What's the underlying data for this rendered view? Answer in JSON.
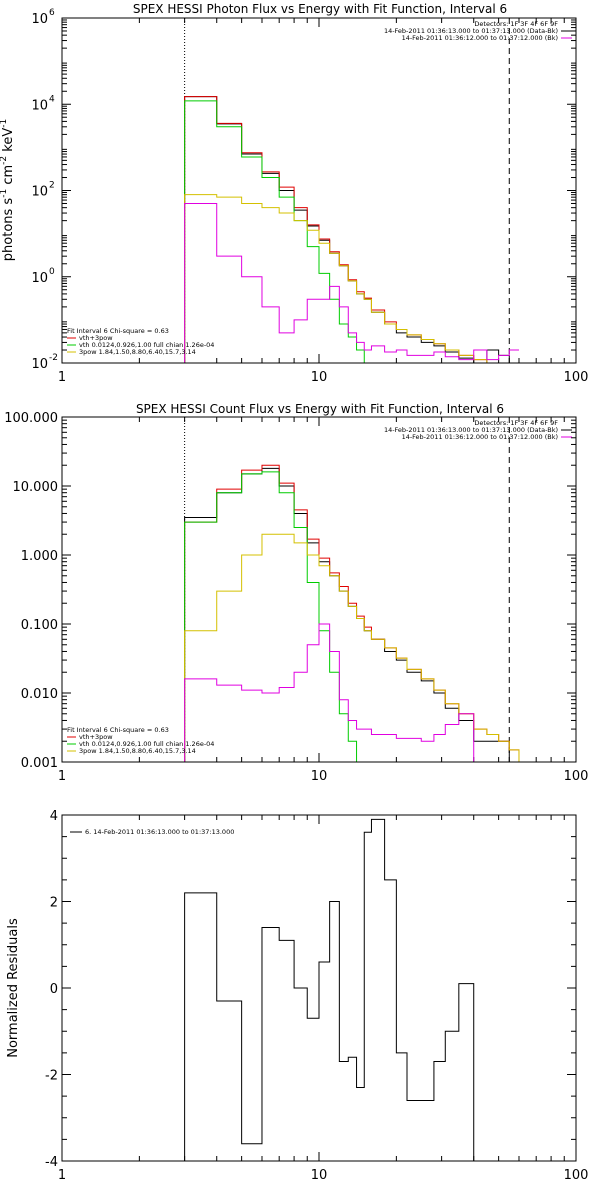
{
  "chart_data": [
    {
      "type": "line",
      "title": "SPEX HESSI Photon Flux vs Energy with Fit Function, Interval 6",
      "ylabel_parts": [
        "photons s",
        "-1",
        " cm",
        "-2",
        " keV",
        "-1"
      ],
      "xlabel": "",
      "xscale": "log",
      "yscale": "log",
      "xlim": [
        1,
        100
      ],
      "ylim": [
        0.01,
        1000000
      ],
      "x_ticks": [
        1,
        10,
        100
      ],
      "x_tick_labels": [
        "1",
        "10",
        "100"
      ],
      "y_ticks": [
        0.01,
        1,
        100,
        10000,
        1000000
      ],
      "y_tick_labels": [
        {
          "base": "10",
          "exp": "-2"
        },
        {
          "base": "10",
          "exp": "0"
        },
        {
          "base": "10",
          "exp": "2"
        },
        {
          "base": "10",
          "exp": "4"
        },
        {
          "base": "10",
          "exp": "6"
        }
      ],
      "vlines": [
        {
          "x": 3.0,
          "style": "dotted"
        },
        {
          "x": 55.0,
          "style": "dashed"
        }
      ],
      "legend_top": [
        {
          "text": "Detectors: 1F 3F 4F 6F 9F",
          "color": ""
        },
        {
          "text": "14-Feb-2011 01:36:13.000 to 01:37:13.000 (Data-Bk)",
          "color": "#000000"
        },
        {
          "text": "14-Feb-2011 01:36:12.000 to 01:37:12.000 (Bk)",
          "color": "#e000e0"
        }
      ],
      "legend_bottom": [
        {
          "text": "Fit Interval  6    Chi-square = 0.63",
          "color": ""
        },
        {
          "text": "vth+3pow",
          "color": "#e00000"
        },
        {
          "text": "vth 0.0124,0.926,1.00  full chian 1.26e-04",
          "color": "#00cc00"
        },
        {
          "text": "3pow 1.84,1.50,8.80,6.40,15.7,3.14",
          "color": "#d4c000"
        }
      ],
      "bin_edges": [
        3.0,
        4.0,
        5.0,
        6.0,
        7.0,
        8.0,
        9.0,
        10.0,
        11.0,
        12.0,
        13.0,
        14.0,
        15.0,
        16.0,
        18.0,
        20.0,
        22.0,
        25.0,
        28.0,
        31.0,
        35.0,
        40.0,
        45.0,
        50.0,
        55.0,
        60.0
      ],
      "series": [
        {
          "name": "Data-Bk",
          "color": "#000000",
          "values": [
            15000,
            3500,
            700,
            250,
            100,
            35,
            15,
            7,
            3.5,
            1.8,
            0.8,
            0.4,
            0.3,
            0.15,
            0.08,
            0.05,
            0.04,
            0.03,
            0.025,
            0.018,
            0.013,
            0.01,
            0.02,
            0.015,
            0.01
          ]
        },
        {
          "name": "vth+3pow",
          "color": "#e00000",
          "values": [
            15000,
            3600,
            750,
            270,
            120,
            40,
            16,
            7.5,
            3.8,
            1.9,
            0.85,
            0.45,
            0.32,
            0.17,
            0.09,
            0.06,
            0.045,
            0.035,
            0.028,
            0.02,
            0.015,
            0.012,
            0.009,
            0.007,
            0.005
          ]
        },
        {
          "name": "vth",
          "color": "#00cc00",
          "values": [
            12000,
            3000,
            600,
            200,
            70,
            20,
            5,
            1.2,
            0.3,
            0.08,
            0.04,
            0.02,
            0.01,
            0.01,
            0.01,
            0.01,
            0.01,
            0.01,
            0.01,
            0.01,
            0.01,
            0.01,
            0.01,
            0.01,
            0.01
          ]
        },
        {
          "name": "3pow",
          "color": "#d4c000",
          "values": [
            80,
            70,
            50,
            40,
            30,
            20,
            12,
            6,
            3.5,
            1.8,
            0.8,
            0.4,
            0.3,
            0.15,
            0.08,
            0.06,
            0.045,
            0.035,
            0.028,
            0.02,
            0.015,
            0.012,
            0.009,
            0.007,
            0.005
          ]
        },
        {
          "name": "Bk",
          "color": "#e000e0",
          "values": [
            50,
            3,
            1,
            0.2,
            0.05,
            0.1,
            0.3,
            0.3,
            0.6,
            0.2,
            0.05,
            0.03,
            0.02,
            0.025,
            0.018,
            0.02,
            0.015,
            0.015,
            0.018,
            0.014,
            0.012,
            0.02,
            0.012,
            0.015,
            0.02
          ]
        }
      ]
    },
    {
      "type": "line",
      "title": "SPEX HESSI Count Flux vs Energy with Fit Function, Interval 6",
      "xscale": "log",
      "yscale": "log",
      "xlim": [
        1,
        100
      ],
      "ylim": [
        0.001,
        100
      ],
      "x_ticks": [
        1,
        10,
        100
      ],
      "x_tick_labels": [
        "1",
        "10",
        "100"
      ],
      "y_ticks": [
        0.001,
        0.01,
        0.1,
        1,
        10,
        100
      ],
      "y_tick_labels": [
        "0.001",
        "0.010",
        "0.100",
        "1.000",
        "10.000",
        "100.000"
      ],
      "vlines": [
        {
          "x": 3.0,
          "style": "dotted"
        },
        {
          "x": 55.0,
          "style": "dashed"
        }
      ],
      "legend_top": [
        {
          "text": "Detectors: 1F 3F 4F 6F 9F",
          "color": ""
        },
        {
          "text": "14-Feb-2011 01:36:13.000 to 01:37:13.000 (Data-Bk)",
          "color": "#000000"
        },
        {
          "text": "14-Feb-2011 01:36:12.000 to 01:37:12.000 (Bk)",
          "color": "#e000e0"
        }
      ],
      "legend_bottom": [
        {
          "text": "Fit Interval  6    Chi-square = 0.63",
          "color": ""
        },
        {
          "text": "vth+3pow",
          "color": "#e00000"
        },
        {
          "text": "vth 0.0124,0.926,1.00  full chian 1.26e-04",
          "color": "#00cc00"
        },
        {
          "text": "3pow 1.84,1.50,8.80,6.40,15.7,3.14",
          "color": "#d4c000"
        }
      ],
      "bin_edges": [
        3.0,
        4.0,
        5.0,
        6.0,
        7.0,
        8.0,
        9.0,
        10.0,
        11.0,
        12.0,
        13.0,
        14.0,
        15.0,
        16.0,
        18.0,
        20.0,
        22.0,
        25.0,
        28.0,
        31.0,
        35.0,
        40.0,
        45.0,
        50.0,
        55.0,
        60.0,
        65.0,
        70.0
      ],
      "series": [
        {
          "name": "Data-Bk",
          "color": "#000000",
          "values": [
            3.5,
            8,
            15,
            18,
            10,
            4,
            1.5,
            0.8,
            0.5,
            0.3,
            0.18,
            0.12,
            0.08,
            0.06,
            0.04,
            0.03,
            0.02,
            0.015,
            0.01,
            0.006,
            0.004,
            0.002,
            0.002,
            0.002,
            0.001,
            0.001,
            0.001
          ]
        },
        {
          "name": "vth+3pow",
          "color": "#e00000",
          "values": [
            3.0,
            9,
            17,
            20,
            11,
            4.5,
            1.7,
            0.9,
            0.55,
            0.35,
            0.2,
            0.13,
            0.09,
            0.06,
            0.045,
            0.032,
            0.022,
            0.016,
            0.011,
            0.007,
            0.005,
            0.003,
            0.0025,
            0.002,
            0.0015,
            0.001,
            0.001
          ]
        },
        {
          "name": "vth",
          "color": "#00cc00",
          "values": [
            3.0,
            8,
            15,
            16,
            8,
            2.5,
            0.4,
            0.08,
            0.02,
            0.005,
            0.002,
            0.001,
            0.001,
            0.001,
            0.001,
            0.001,
            0.001,
            0.001,
            0.001,
            0.001,
            0.001,
            0.001,
            0.001,
            0.001,
            0.001,
            0.001,
            0.001
          ]
        },
        {
          "name": "3pow",
          "color": "#d4c000",
          "values": [
            0.08,
            0.3,
            1,
            2,
            2,
            1.5,
            1,
            0.7,
            0.5,
            0.3,
            0.18,
            0.12,
            0.08,
            0.06,
            0.045,
            0.032,
            0.022,
            0.016,
            0.011,
            0.007,
            0.005,
            0.003,
            0.0025,
            0.002,
            0.0015,
            0.001,
            0.001
          ]
        },
        {
          "name": "Bk",
          "color": "#e000e0",
          "values": [
            0.016,
            0.013,
            0.011,
            0.01,
            0.012,
            0.02,
            0.05,
            0.1,
            0.04,
            0.008,
            0.004,
            0.003,
            0.003,
            0.0025,
            0.0025,
            0.0022,
            0.0022,
            0.002,
            0.0025,
            0.0035,
            0.005,
            0.001,
            0.001,
            0.001,
            0.001,
            0.001,
            0.001
          ]
        }
      ]
    },
    {
      "type": "line",
      "title": "",
      "ylabel": "Normalized Residuals",
      "xscale": "log",
      "yscale": "linear",
      "xlim": [
        1,
        100
      ],
      "ylim": [
        -4,
        4
      ],
      "x_ticks": [
        1,
        10,
        100
      ],
      "x_tick_labels": [
        "1",
        "10",
        "100"
      ],
      "y_ticks": [
        -4,
        -2,
        0,
        2,
        4
      ],
      "y_tick_labels": [
        "-4",
        "-2",
        "0",
        "2",
        "4"
      ],
      "legend_top": [
        {
          "text": "6. 14-Feb-2011 01:36:13.000 to 01:37:13.000",
          "color": "#000000"
        }
      ],
      "bin_edges": [
        3.0,
        4.0,
        5.0,
        6.0,
        7.0,
        8.0,
        9.0,
        10.0,
        11.0,
        12.0,
        13.0,
        14.0,
        15.0,
        16.0,
        18.0,
        20.0,
        22.0,
        25.0,
        28.0,
        31.0,
        35.0,
        40.0,
        45.0,
        50.0,
        55.0
      ],
      "series": [
        {
          "name": "6. 14-Feb-2011 01:36:13.000 to 01:37:13.000",
          "color": "#000000",
          "values": [
            2.2,
            -0.3,
            -3.6,
            1.4,
            1.1,
            0.0,
            -0.7,
            0.6,
            2.0,
            -1.7,
            -1.6,
            -2.3,
            3.6,
            3.9,
            2.5,
            -1.5,
            -2.6,
            -2.6,
            -1.7,
            -1.0,
            0.1,
            -4.0,
            -4.0,
            -4.0
          ]
        }
      ]
    }
  ]
}
